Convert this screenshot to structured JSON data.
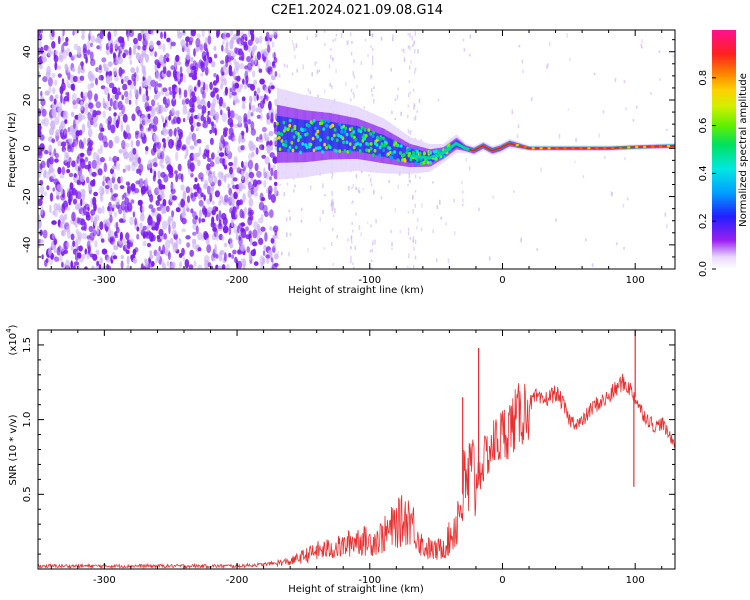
{
  "figure": {
    "title": "C2E1.2024.021.09.08.G14"
  },
  "chart_data": [
    {
      "type": "heatmap",
      "xlabel": "Height of straight line (km)",
      "ylabel": "Frequency (Hz)",
      "xlim": [
        -350,
        130
      ],
      "ylim": [
        -50,
        49
      ],
      "xticks": [
        -300,
        -200,
        -100,
        0,
        100
      ],
      "yticks": [
        -40,
        -20,
        0,
        20,
        40
      ],
      "colorbar": {
        "label": "Normalized spectral amplitude",
        "range": [
          0,
          1
        ],
        "ticks": [
          "0.0",
          "0.2",
          "0.4",
          "0.6",
          "0.8"
        ],
        "tick_values": [
          0.0,
          0.2,
          0.4,
          0.6,
          0.8
        ]
      },
      "ridge": {
        "x": [
          -170,
          -150,
          -130,
          -110,
          -90,
          -70,
          -55,
          -45,
          -35,
          -28,
          -22,
          -15,
          -8,
          -2,
          5,
          20,
          40,
          60,
          80,
          100,
          130
        ],
        "y": [
          6,
          5,
          5,
          4,
          1,
          -3,
          -4,
          -2,
          2,
          0,
          -1,
          1,
          -1,
          0,
          2,
          0,
          0,
          0,
          0,
          0.5,
          1
        ],
        "spread": [
          10,
          9,
          8,
          7,
          6,
          4,
          3,
          2,
          2,
          1,
          1,
          1,
          1,
          1,
          1,
          0.6,
          0.6,
          0.6,
          0.6,
          0.6,
          0.6
        ]
      },
      "colors": {
        "noise": "#7a1cf0",
        "faint": "#cdb3f5",
        "ridge_core": "#e0281e"
      }
    },
    {
      "type": "line",
      "xlabel": "Height of straight line (km)",
      "ylabel": "SNR (10 * v/v)",
      "y_multiplier": "(x10",
      "y_multiplier_exp": "4",
      "y_multiplier_close": ")",
      "xlim": [
        -350,
        130
      ],
      "ylim": [
        0,
        1.6
      ],
      "xticks": [
        -300,
        -200,
        -100,
        0,
        100
      ],
      "yticks": [
        0.5,
        1.0,
        1.5
      ],
      "ytick_labels": [
        "0.5",
        "1.0",
        "1.5"
      ],
      "series": [
        {
          "color": "#e83030",
          "x": [
            -350,
            -300,
            -250,
            -200,
            -180,
            -160,
            -140,
            -120,
            -110,
            -100,
            -90,
            -80,
            -70,
            -60,
            -50,
            -45,
            -40,
            -35,
            -30,
            -25,
            -20,
            -15,
            -10,
            -5,
            0,
            5,
            10,
            15,
            20,
            25,
            30,
            35,
            40,
            45,
            50,
            55,
            60,
            65,
            70,
            75,
            80,
            85,
            90,
            95,
            100,
            105,
            110,
            115,
            120,
            125,
            130
          ],
          "y": [
            0.02,
            0.02,
            0.02,
            0.02,
            0.03,
            0.05,
            0.12,
            0.15,
            0.2,
            0.18,
            0.22,
            0.3,
            0.35,
            0.15,
            0.12,
            0.15,
            0.2,
            0.3,
            0.5,
            0.6,
            0.6,
            0.7,
            0.8,
            0.85,
            0.9,
            0.95,
            1.0,
            1.05,
            1.1,
            1.15,
            1.12,
            1.15,
            1.18,
            1.12,
            1.0,
            0.98,
            0.98,
            1.05,
            1.1,
            1.12,
            1.15,
            1.2,
            1.25,
            1.22,
            1.15,
            1.05,
            1.0,
            0.95,
            0.98,
            0.9,
            0.85
          ]
        }
      ],
      "spikes": [
        {
          "x": -30,
          "y": 1.15
        },
        {
          "x": -18,
          "y": 1.48
        },
        {
          "x": 100,
          "y": 1.6
        },
        {
          "x": 99,
          "y": 0.55
        }
      ]
    }
  ]
}
